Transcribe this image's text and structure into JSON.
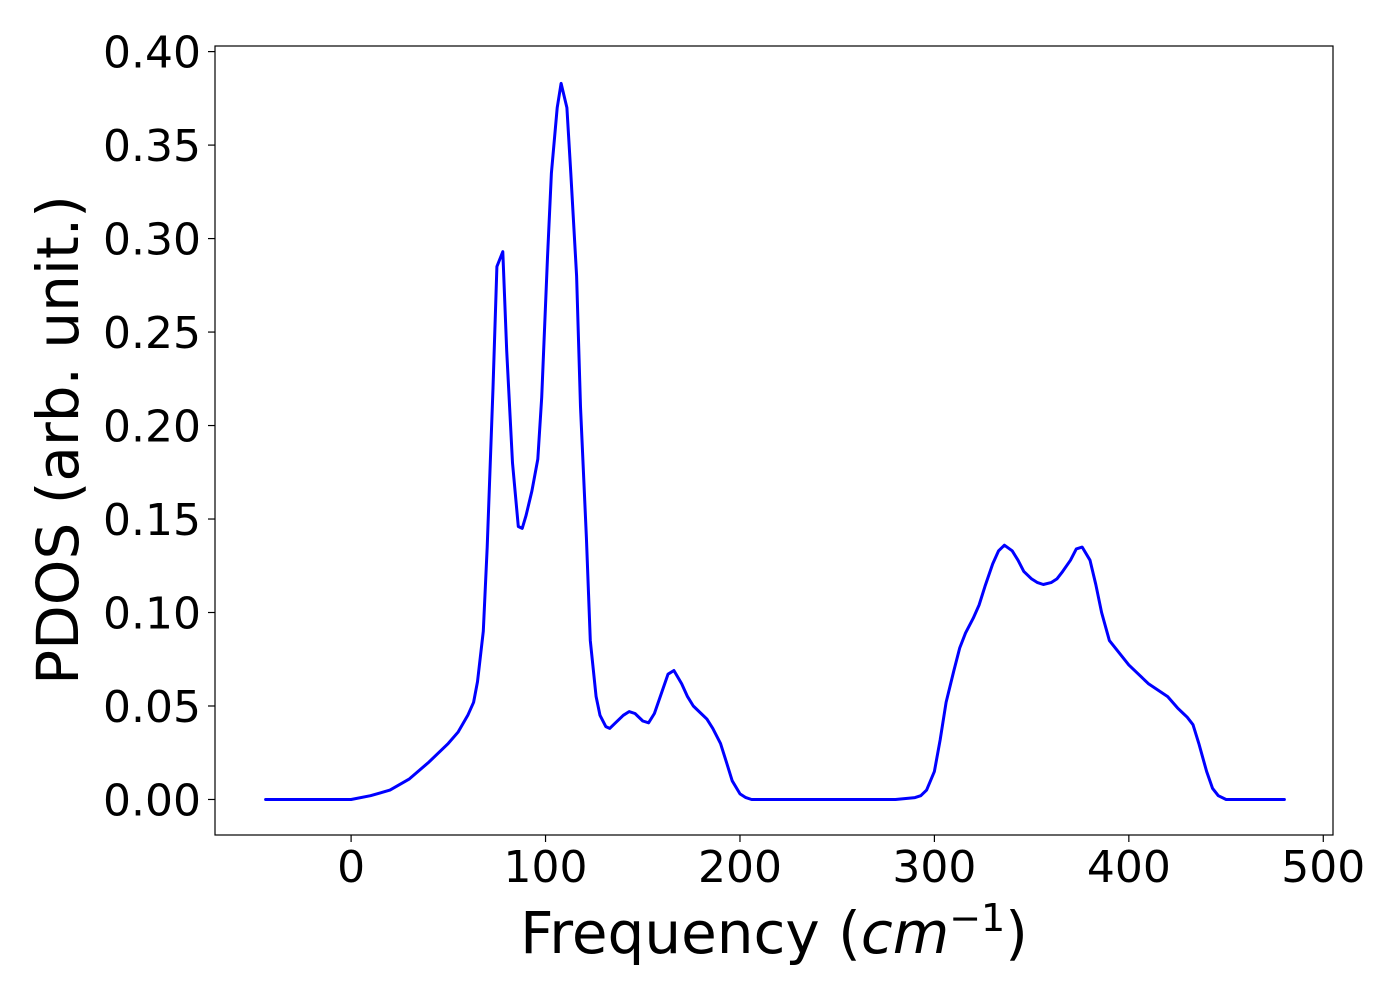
{
  "chart_data": {
    "type": "line",
    "title": "",
    "xlabel": {
      "main": "Frequency (",
      "italic": "cm",
      "superscript": "−1",
      "close": ")"
    },
    "ylabel": "PDOS (arb. unit.)",
    "xlim": [
      -70,
      505
    ],
    "ylim": [
      -0.019,
      0.403
    ],
    "xticks": [
      0,
      100,
      200,
      300,
      400,
      500
    ],
    "xtick_labels": [
      "0",
      "100",
      "200",
      "300",
      "400",
      "500"
    ],
    "yticks": [
      0.0,
      0.05,
      0.1,
      0.15,
      0.2,
      0.25,
      0.3,
      0.35,
      0.4
    ],
    "ytick_labels": [
      "0.00",
      "0.05",
      "0.10",
      "0.15",
      "0.20",
      "0.25",
      "0.30",
      "0.35",
      "0.40"
    ],
    "grid": false,
    "series": [
      {
        "color": "#0000ff",
        "x": [
          -44,
          0,
          10,
          20,
          30,
          40,
          50,
          55,
          60,
          63,
          65,
          68,
          70,
          73,
          75,
          78,
          80,
          83,
          86,
          88,
          90,
          93,
          96,
          98,
          101,
          103,
          106,
          108,
          111,
          113,
          116,
          118,
          121,
          123,
          126,
          128,
          131,
          133,
          136,
          140,
          143,
          146,
          150,
          153,
          156,
          160,
          163,
          166,
          170,
          173,
          176,
          180,
          183,
          186,
          190,
          193,
          196,
          200,
          203,
          206,
          210,
          220,
          250,
          280,
          290,
          293,
          296,
          300,
          303,
          306,
          310,
          313,
          316,
          320,
          323,
          326,
          330,
          333,
          336,
          340,
          343,
          346,
          350,
          353,
          356,
          360,
          363,
          366,
          370,
          373,
          376,
          380,
          383,
          386,
          390,
          400,
          410,
          420,
          425,
          428,
          430,
          433,
          436,
          440,
          443,
          446,
          450,
          460,
          480
        ],
        "y": [
          0.0,
          0.0,
          0.002,
          0.005,
          0.011,
          0.02,
          0.03,
          0.036,
          0.045,
          0.052,
          0.063,
          0.09,
          0.135,
          0.22,
          0.285,
          0.293,
          0.24,
          0.18,
          0.146,
          0.145,
          0.152,
          0.165,
          0.182,
          0.215,
          0.29,
          0.335,
          0.37,
          0.383,
          0.37,
          0.335,
          0.28,
          0.21,
          0.14,
          0.085,
          0.055,
          0.045,
          0.039,
          0.038,
          0.041,
          0.045,
          0.047,
          0.046,
          0.042,
          0.041,
          0.046,
          0.058,
          0.067,
          0.069,
          0.062,
          0.055,
          0.05,
          0.046,
          0.043,
          0.038,
          0.03,
          0.02,
          0.01,
          0.003,
          0.001,
          0.0,
          0.0,
          0.0,
          0.0,
          0.0,
          0.001,
          0.002,
          0.005,
          0.015,
          0.032,
          0.052,
          0.069,
          0.081,
          0.089,
          0.097,
          0.104,
          0.114,
          0.126,
          0.133,
          0.136,
          0.133,
          0.128,
          0.122,
          0.118,
          0.116,
          0.115,
          0.116,
          0.118,
          0.122,
          0.128,
          0.134,
          0.135,
          0.128,
          0.115,
          0.1,
          0.085,
          0.072,
          0.062,
          0.055,
          0.049,
          0.046,
          0.044,
          0.04,
          0.03,
          0.015,
          0.006,
          0.002,
          0.0,
          0.0,
          0.0
        ]
      }
    ]
  }
}
